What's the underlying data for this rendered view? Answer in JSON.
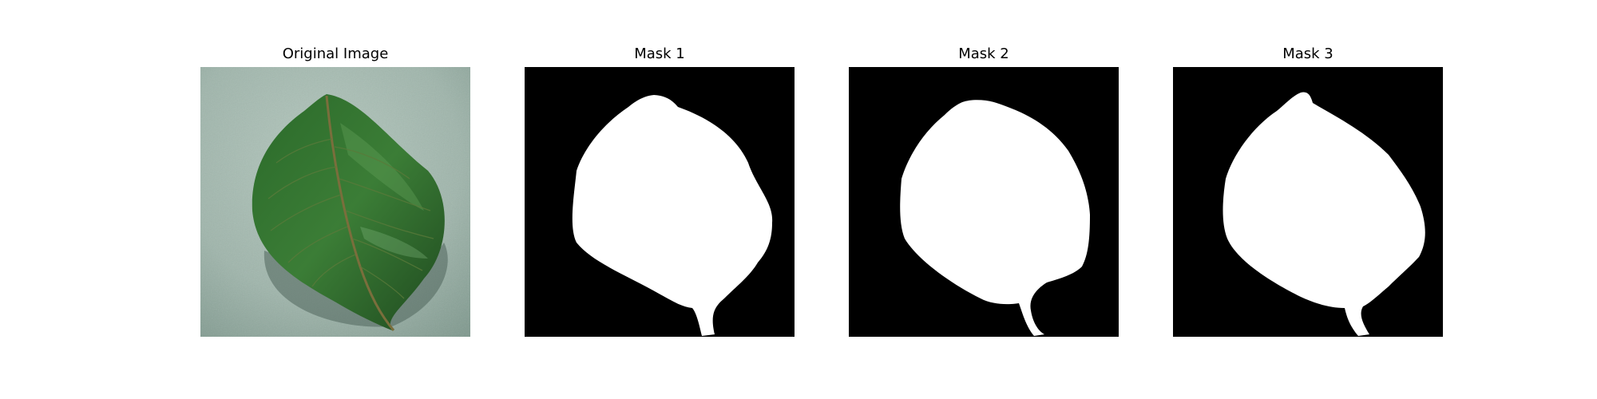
{
  "figure": {
    "panels": [
      {
        "title": "Original Image",
        "kind": "photo"
      },
      {
        "title": "Mask 1",
        "kind": "mask"
      },
      {
        "title": "Mask 2",
        "kind": "mask"
      },
      {
        "title": "Mask 3",
        "kind": "mask"
      }
    ]
  },
  "colors": {
    "background": "#ffffff",
    "mask_background": "#000000",
    "mask_foreground": "#ffffff",
    "photo_background": "#9fb5ab",
    "leaf_dark": "#1f4a1f",
    "leaf_mid": "#2f6a2c",
    "leaf_light": "#4d8f45",
    "leaf_vein": "#6b6a3a"
  }
}
